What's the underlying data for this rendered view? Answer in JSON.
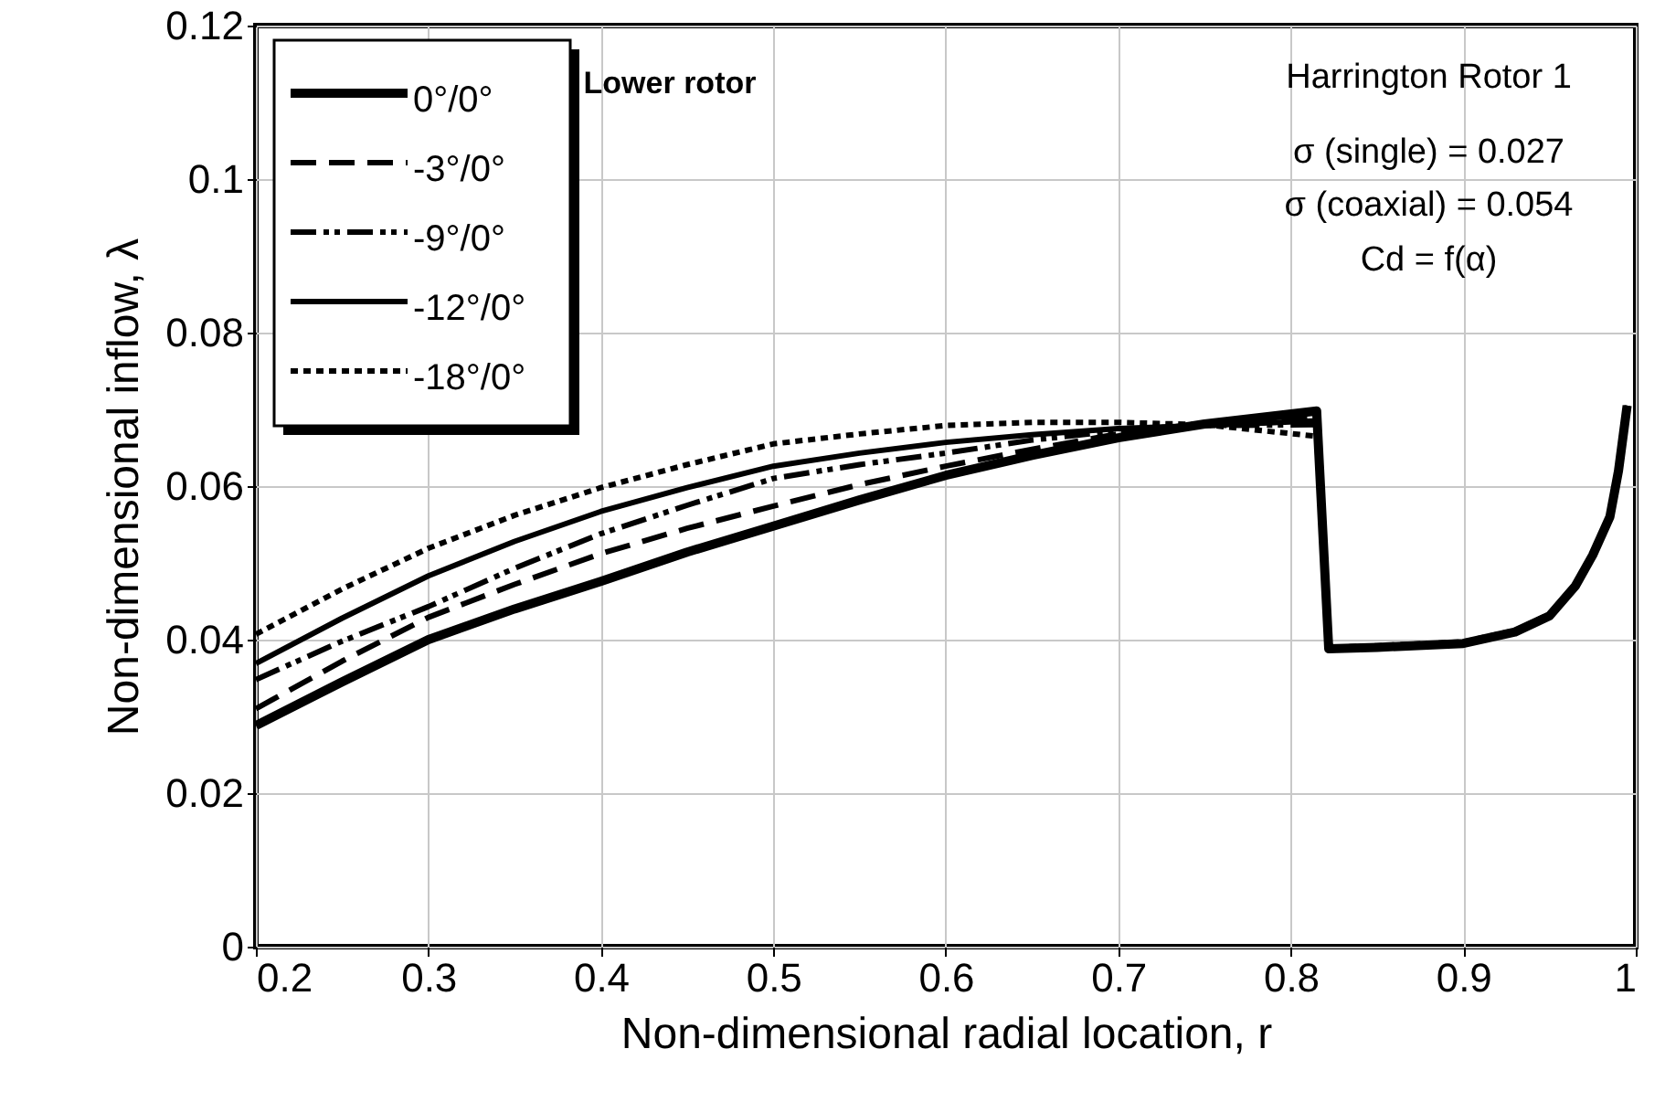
{
  "chart_data": {
    "type": "line",
    "xlabel": "Non-dimensional radial location, r",
    "ylabel": "Non-dimensional inflow, λ",
    "x": [
      0.2,
      0.25,
      0.3,
      0.35,
      0.4,
      0.45,
      0.5,
      0.55,
      0.6,
      0.65,
      0.7,
      0.75,
      0.815,
      0.822,
      0.85,
      0.9,
      0.93,
      0.95,
      0.965,
      0.975,
      0.985,
      0.99,
      0.995
    ],
    "series": [
      {
        "name": "0°/0°",
        "color": "#000000",
        "line_style": "solid",
        "values": [
          0.0288,
          0.0345,
          0.04,
          0.044,
          0.0476,
          0.0514,
          0.0548,
          0.0582,
          0.0614,
          0.064,
          0.0663,
          0.0681,
          0.0698,
          0.0388,
          0.039,
          0.0395,
          0.041,
          0.0431,
          0.047,
          0.051,
          0.056,
          0.062,
          0.0705
        ]
      },
      {
        "name": "-3°/0°",
        "color": "#000000",
        "line_style": "dashed",
        "values": [
          0.031,
          0.0372,
          0.0429,
          0.0472,
          0.0512,
          0.0545,
          0.0574,
          0.0602,
          0.0626,
          0.0648,
          0.0668,
          0.068,
          0.069,
          0.0388,
          0.039,
          0.0395,
          0.041,
          0.0431,
          0.047,
          0.051,
          0.056,
          0.062,
          0.0705
        ]
      },
      {
        "name": "-9°/0°",
        "color": "#000000",
        "line_style": "dashdot",
        "values": [
          0.0348,
          0.0398,
          0.0443,
          0.0493,
          0.0538,
          0.0575,
          0.061,
          0.0628,
          0.0643,
          0.066,
          0.0672,
          0.0679,
          0.068,
          0.0389,
          0.0391,
          0.0396,
          0.0411,
          0.0432,
          0.047,
          0.051,
          0.056,
          0.062,
          0.0705
        ]
      },
      {
        "name": "-12°/0°",
        "color": "#000000",
        "line_style": "solid",
        "values": [
          0.0369,
          0.0428,
          0.0483,
          0.0528,
          0.0567,
          0.0598,
          0.0626,
          0.0643,
          0.0657,
          0.0667,
          0.0675,
          0.0679,
          0.0685,
          0.0389,
          0.0391,
          0.0396,
          0.0411,
          0.0432,
          0.047,
          0.051,
          0.056,
          0.062,
          0.0705
        ]
      },
      {
        "name": "-18°/0°",
        "color": "#000000",
        "line_style": "dotted",
        "values": [
          0.0407,
          0.0466,
          0.0519,
          0.0562,
          0.0598,
          0.0628,
          0.0655,
          0.0668,
          0.0679,
          0.0683,
          0.0683,
          0.068,
          0.0665,
          0.039,
          0.0392,
          0.0397,
          0.0412,
          0.0433,
          0.0472,
          0.0512,
          0.0562,
          0.062,
          0.0705
        ]
      }
    ],
    "xlim": [
      0.2,
      1
    ],
    "xticks": [
      0.2,
      0.3,
      0.4,
      0.5,
      0.6,
      0.7,
      0.8,
      0.9,
      1
    ],
    "ylim": [
      0,
      0.12
    ],
    "yticks": [
      0,
      0.02,
      0.04,
      0.06,
      0.08,
      0.1,
      0.12
    ],
    "grid": true,
    "legend": "top left",
    "annotations": [
      "Lower rotor",
      "Harrington Rotor 1",
      "σ (single) = 0.027",
      "σ (coaxial) = 0.054",
      "Cd = f(α)"
    ]
  }
}
